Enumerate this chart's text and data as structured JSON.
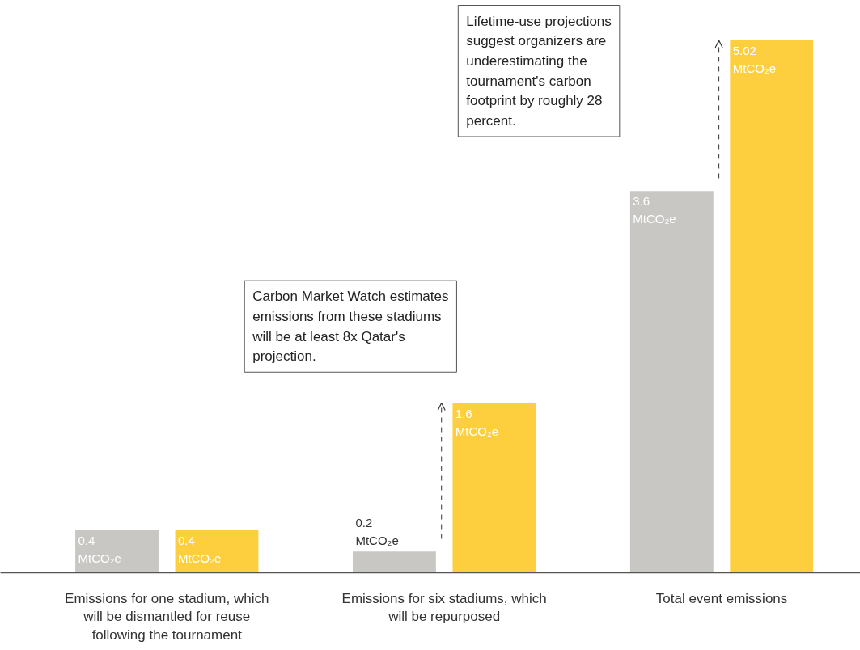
{
  "chart_data": {
    "type": "bar",
    "categories": [
      "Emissions for one stadium, which will be dismantled for reuse following the tournament",
      "Emissions for six stadiums, which will be repurposed",
      "Total event emissions"
    ],
    "series": [
      {
        "color": "#c9c7c4",
        "values": [
          0.4,
          0.2,
          3.6
        ],
        "value_labels": [
          "0.4 MtCO₂e",
          "0.2 MtCO₂e",
          "3.6 MtCO₂e"
        ]
      },
      {
        "color": "#fdcf3f",
        "values": [
          0.4,
          1.6,
          5.02
        ],
        "value_labels": [
          "0.4 MtCO₂e",
          "1.6 MtCO₂e",
          "5.02 MtCO₂e"
        ]
      }
    ],
    "annotations": [
      "Carbon Market Watch estimates emissions from these stadiums will be at least 8x Qatar's projection.",
      "Lifetime-use projections suggest organizers are underestimating the tournament's carbon footprint by roughly 28 percent."
    ]
  }
}
